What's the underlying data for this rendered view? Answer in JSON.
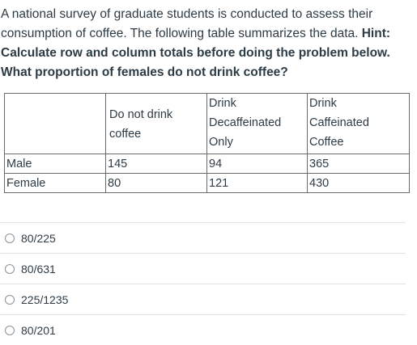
{
  "question": {
    "text_line1": "A national survey of graduate students is conducted to assess their",
    "text_line2": "consumption of coffee. The following table summarizes the data. ",
    "hint_label": "Hint:",
    "bold_line3": "Calculate row and column totals before doing the problem below.",
    "bold_line4": "What proportion of females do not drink coffee?"
  },
  "table": {
    "headers": [
      "",
      [
        "Do not drink",
        "coffee"
      ],
      [
        "Drink",
        "Decaffeinated",
        "Only"
      ],
      [
        "Drink",
        "Caffeinated",
        "Coffee"
      ]
    ],
    "rows": [
      {
        "label": "Male",
        "values": [
          "145",
          "94",
          "365"
        ]
      },
      {
        "label": "Female",
        "values": [
          "80",
          "121",
          "430"
        ]
      }
    ]
  },
  "options": [
    {
      "label": "80/225"
    },
    {
      "label": "80/631"
    },
    {
      "label": "225/1235"
    },
    {
      "label": "80/201"
    }
  ]
}
